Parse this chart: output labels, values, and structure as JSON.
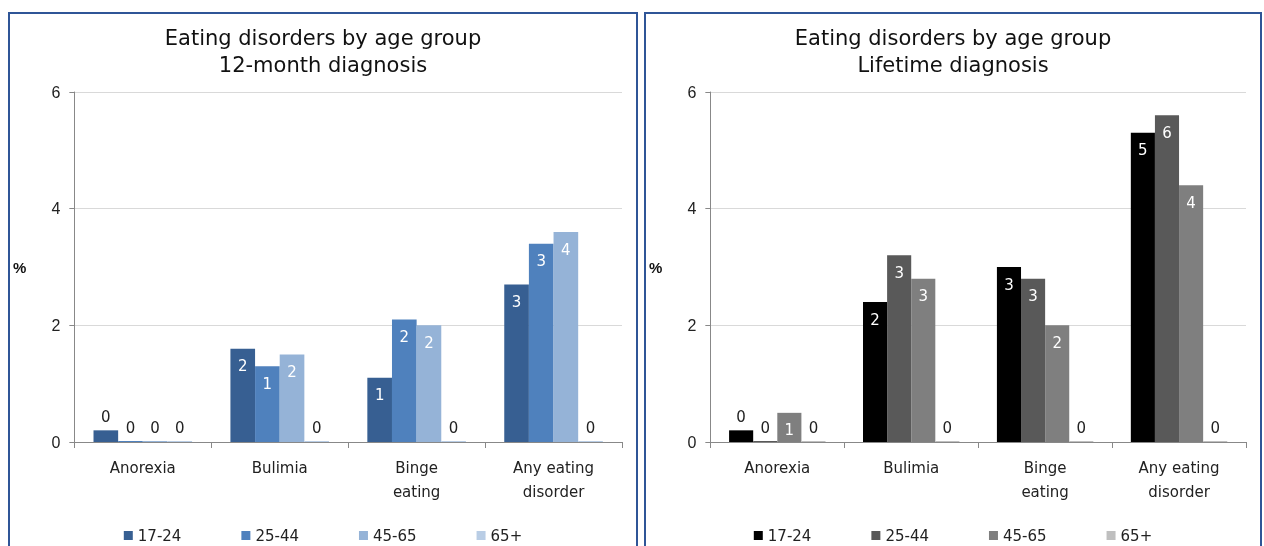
{
  "chart_data": [
    {
      "type": "bar",
      "title": "Eating disorders by age group",
      "subtitle": "12-month diagnosis",
      "ylabel": "%",
      "categories": [
        "Anorexia",
        "Bulimia",
        "Binge eating",
        "Any eating disorder"
      ],
      "series": [
        {
          "name": "17-24",
          "color": "#375f92",
          "values": [
            0.2,
            1.6,
            1.1,
            2.7
          ],
          "value_labels": [
            "0",
            "2",
            "1",
            "3"
          ]
        },
        {
          "name": "25-44",
          "color": "#4f81bd",
          "values": [
            0,
            1.3,
            2.1,
            3.4
          ],
          "value_labels": [
            "0",
            "1",
            "2",
            "3"
          ]
        },
        {
          "name": "45-65",
          "color": "#95b3d7",
          "values": [
            0,
            1.5,
            2.0,
            3.6
          ],
          "value_labels": [
            "0",
            "2",
            "2",
            "4"
          ]
        },
        {
          "name": "65+",
          "color": "#b9cde5",
          "values": [
            0,
            0,
            0,
            0
          ],
          "value_labels": [
            "0",
            "0",
            "0",
            "0"
          ]
        }
      ],
      "ylim": [
        0,
        6
      ],
      "yticks": [
        0,
        2,
        4,
        6
      ],
      "grid": "y",
      "legend": "bottom"
    },
    {
      "type": "bar",
      "title": "Eating disorders by age group",
      "subtitle": "Lifetime diagnosis",
      "ylabel": "%",
      "categories": [
        "Anorexia",
        "Bulimia",
        "Binge eating",
        "Any eating disorder"
      ],
      "series": [
        {
          "name": "17-24",
          "color": "#000000",
          "values": [
            0.2,
            2.4,
            3.0,
            5.3
          ],
          "value_labels": [
            "0",
            "2",
            "3",
            "5"
          ]
        },
        {
          "name": "25-44",
          "color": "#595959",
          "values": [
            0,
            3.2,
            2.8,
            5.6
          ],
          "value_labels": [
            "0",
            "3",
            "3",
            "6"
          ]
        },
        {
          "name": "45-65",
          "color": "#7f7f7f",
          "values": [
            0.5,
            2.8,
            2.0,
            4.4
          ],
          "value_labels": [
            "1",
            "3",
            "2",
            "4"
          ]
        },
        {
          "name": "65+",
          "color": "#bfbfbf",
          "values": [
            0,
            0,
            0,
            0
          ],
          "value_labels": [
            "0",
            "0",
            "0",
            "0"
          ]
        }
      ],
      "ylim": [
        0,
        6
      ],
      "yticks": [
        0,
        2,
        4,
        6
      ],
      "grid": "y",
      "legend": "bottom"
    }
  ]
}
